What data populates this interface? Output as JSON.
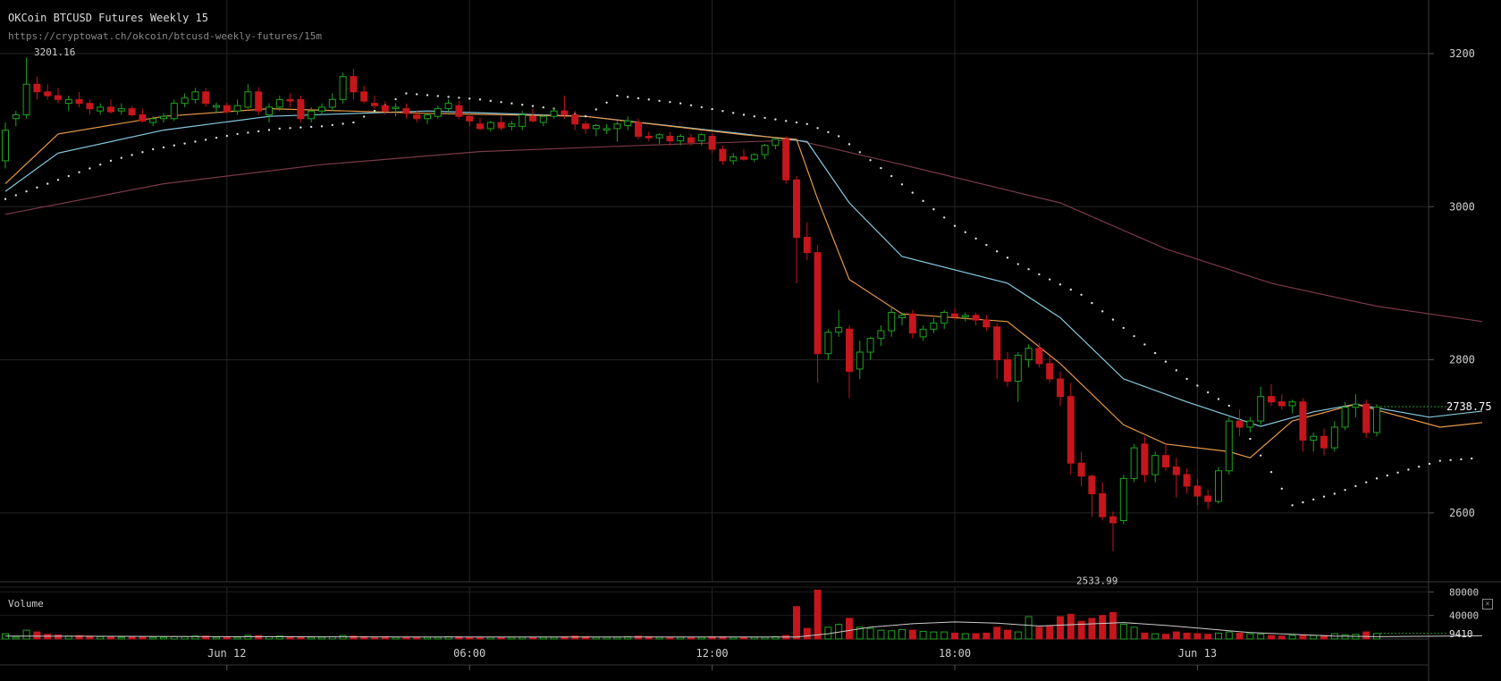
{
  "header": {
    "title": "OKCoin BTCUSD Futures Weekly 15",
    "url": "https://cryptowat.ch/okcoin/btcusd-weekly-futures/15m"
  },
  "volume_panel": {
    "label": "Volume",
    "close_symbol": "✕"
  },
  "colors": {
    "background": "#000000",
    "up": "#1fa31f",
    "down": "#c4161c",
    "ema_fast": "#e8994a",
    "ema_mid": "#86c9e0",
    "sma_long": "#7a3a48",
    "grid": "#262626",
    "text": "#bbbbbb",
    "current_price_line": "#1fa31f"
  },
  "chart_data": {
    "type": "candlestick",
    "title": "OKCoin BTCUSD Futures Weekly 15",
    "interval": "15m",
    "x_tick_labels": [
      "Jun 12",
      "06:00",
      "12:00",
      "18:00",
      "Jun 13"
    ],
    "y_ticks": [
      3200,
      3000,
      2800,
      2600
    ],
    "ylim": [
      2510,
      3270
    ],
    "annotations": {
      "high": "3201.16",
      "low": "2533.99"
    },
    "current_price": "2738.75",
    "volume": {
      "y_ticks": [
        "80000",
        "40000"
      ],
      "current_label": "9410",
      "ylim": [
        0,
        85000
      ]
    },
    "candles": [
      [
        3060,
        3110,
        3050,
        3100,
        9000
      ],
      [
        3115,
        3125,
        3105,
        3120,
        3000
      ],
      [
        3120,
        3195,
        3115,
        3160,
        15000
      ],
      [
        3160,
        3170,
        3140,
        3150,
        12000
      ],
      [
        3150,
        3160,
        3140,
        3145,
        8000
      ],
      [
        3145,
        3155,
        3135,
        3140,
        7000
      ],
      [
        3135,
        3145,
        3125,
        3140,
        5000
      ],
      [
        3140,
        3150,
        3130,
        3135,
        6000
      ],
      [
        3135,
        3140,
        3120,
        3128,
        5000
      ],
      [
        3125,
        3135,
        3120,
        3130,
        4000
      ],
      [
        3130,
        3140,
        3122,
        3124,
        4000
      ],
      [
        3125,
        3135,
        3120,
        3128,
        3000
      ],
      [
        3128,
        3132,
        3118,
        3120,
        3000
      ],
      [
        3120,
        3128,
        3110,
        3112,
        3000
      ],
      [
        3110,
        3118,
        3105,
        3115,
        3000
      ],
      [
        3115,
        3122,
        3110,
        3118,
        3000
      ],
      [
        3115,
        3140,
        3112,
        3135,
        4000
      ],
      [
        3135,
        3148,
        3130,
        3142,
        4000
      ],
      [
        3140,
        3155,
        3135,
        3150,
        5000
      ],
      [
        3150,
        3155,
        3130,
        3135,
        5000
      ],
      [
        3130,
        3136,
        3122,
        3132,
        3000
      ],
      [
        3132,
        3136,
        3122,
        3124,
        3000
      ],
      [
        3125,
        3140,
        3120,
        3132,
        3000
      ],
      [
        3130,
        3160,
        3128,
        3150,
        6000
      ],
      [
        3150,
        3156,
        3120,
        3125,
        6000
      ],
      [
        3120,
        3135,
        3110,
        3130,
        4000
      ],
      [
        3130,
        3145,
        3125,
        3140,
        5000
      ],
      [
        3140,
        3148,
        3130,
        3138,
        4000
      ],
      [
        3140,
        3145,
        3110,
        3115,
        4000
      ],
      [
        3115,
        3130,
        3110,
        3125,
        3000
      ],
      [
        3125,
        3135,
        3120,
        3130,
        3000
      ],
      [
        3130,
        3148,
        3125,
        3140,
        4000
      ],
      [
        3140,
        3175,
        3135,
        3170,
        6000
      ],
      [
        3170,
        3180,
        3140,
        3150,
        5000
      ],
      [
        3150,
        3158,
        3135,
        3138,
        4000
      ],
      [
        3135,
        3145,
        3128,
        3132,
        3000
      ],
      [
        3132,
        3138,
        3120,
        3125,
        4000
      ],
      [
        3128,
        3135,
        3118,
        3130,
        3000
      ],
      [
        3128,
        3135,
        3115,
        3122,
        3000
      ],
      [
        3120,
        3126,
        3110,
        3115,
        3000
      ],
      [
        3115,
        3122,
        3108,
        3120,
        3000
      ],
      [
        3118,
        3132,
        3115,
        3128,
        3000
      ],
      [
        3128,
        3140,
        3125,
        3135,
        4000
      ],
      [
        3132,
        3138,
        3115,
        3118,
        4000
      ],
      [
        3118,
        3122,
        3105,
        3112,
        3000
      ],
      [
        3108,
        3116,
        3100,
        3102,
        3000
      ],
      [
        3102,
        3112,
        3098,
        3110,
        3000
      ],
      [
        3110,
        3120,
        3100,
        3103,
        3000
      ],
      [
        3105,
        3112,
        3100,
        3108,
        3000
      ],
      [
        3105,
        3125,
        3100,
        3120,
        3000
      ],
      [
        3118,
        3128,
        3110,
        3112,
        3000
      ],
      [
        3110,
        3120,
        3105,
        3118,
        3000
      ],
      [
        3118,
        3130,
        3115,
        3125,
        3000
      ],
      [
        3125,
        3145,
        3115,
        3120,
        4000
      ],
      [
        3120,
        3125,
        3100,
        3108,
        5000
      ],
      [
        3108,
        3112,
        3095,
        3102,
        4000
      ],
      [
        3102,
        3108,
        3092,
        3106,
        3000
      ],
      [
        3100,
        3108,
        3095,
        3102,
        3000
      ],
      [
        3102,
        3112,
        3085,
        3108,
        3000
      ],
      [
        3106,
        3118,
        3100,
        3112,
        4000
      ],
      [
        3110,
        3115,
        3088,
        3092,
        5000
      ],
      [
        3092,
        3098,
        3085,
        3090,
        4000
      ],
      [
        3090,
        3096,
        3082,
        3094,
        3000
      ],
      [
        3092,
        3098,
        3080,
        3086,
        3000
      ],
      [
        3086,
        3095,
        3080,
        3092,
        3000
      ],
      [
        3090,
        3095,
        3080,
        3084,
        3000
      ],
      [
        3086,
        3096,
        3080,
        3094,
        3000
      ],
      [
        3092,
        3096,
        3070,
        3075,
        4000
      ],
      [
        3075,
        3080,
        3055,
        3060,
        4000
      ],
      [
        3060,
        3070,
        3055,
        3065,
        3000
      ],
      [
        3065,
        3075,
        3060,
        3062,
        3000
      ],
      [
        3062,
        3070,
        3058,
        3068,
        3000
      ],
      [
        3068,
        3082,
        3062,
        3080,
        3000
      ],
      [
        3080,
        3090,
        3075,
        3088,
        4000
      ],
      [
        3088,
        3092,
        3030,
        3035,
        6000
      ],
      [
        3035,
        3040,
        2900,
        2960,
        55000
      ],
      [
        2960,
        2980,
        2930,
        2940,
        18000
      ],
      [
        2940,
        2950,
        2770,
        2808,
        83000
      ],
      [
        2808,
        2840,
        2800,
        2836,
        20000
      ],
      [
        2836,
        2865,
        2830,
        2842,
        25000
      ],
      [
        2840,
        2845,
        2750,
        2785,
        35000
      ],
      [
        2788,
        2825,
        2775,
        2810,
        20000
      ],
      [
        2810,
        2830,
        2800,
        2828,
        18000
      ],
      [
        2828,
        2845,
        2818,
        2838,
        15000
      ],
      [
        2838,
        2870,
        2830,
        2862,
        14000
      ],
      [
        2855,
        2862,
        2845,
        2858,
        16000
      ],
      [
        2860,
        2865,
        2828,
        2835,
        15000
      ],
      [
        2830,
        2845,
        2825,
        2840,
        13000
      ],
      [
        2840,
        2855,
        2835,
        2848,
        12000
      ],
      [
        2848,
        2865,
        2840,
        2862,
        12000
      ],
      [
        2860,
        2868,
        2852,
        2856,
        10000
      ],
      [
        2856,
        2862,
        2850,
        2858,
        9000
      ],
      [
        2858,
        2862,
        2845,
        2852,
        9000
      ],
      [
        2852,
        2858,
        2838,
        2843,
        10000
      ],
      [
        2843,
        2848,
        2775,
        2800,
        20000
      ],
      [
        2800,
        2810,
        2765,
        2772,
        15000
      ],
      [
        2772,
        2810,
        2745,
        2806,
        12000
      ],
      [
        2800,
        2820,
        2790,
        2815,
        38000
      ],
      [
        2815,
        2822,
        2790,
        2795,
        20000
      ],
      [
        2795,
        2805,
        2770,
        2775,
        22000
      ],
      [
        2775,
        2785,
        2740,
        2752,
        38000
      ],
      [
        2752,
        2770,
        2650,
        2665,
        42000
      ],
      [
        2665,
        2680,
        2635,
        2648,
        30000
      ],
      [
        2648,
        2650,
        2595,
        2625,
        35000
      ],
      [
        2625,
        2640,
        2590,
        2595,
        40000
      ],
      [
        2595,
        2602,
        2550,
        2587,
        45000
      ],
      [
        2590,
        2650,
        2585,
        2645,
        25000
      ],
      [
        2645,
        2690,
        2640,
        2685,
        20000
      ],
      [
        2690,
        2700,
        2640,
        2650,
        10000
      ],
      [
        2650,
        2680,
        2640,
        2675,
        9000
      ],
      [
        2675,
        2690,
        2655,
        2660,
        8000
      ],
      [
        2660,
        2672,
        2620,
        2650,
        12000
      ],
      [
        2650,
        2658,
        2625,
        2635,
        10000
      ],
      [
        2635,
        2645,
        2610,
        2622,
        9000
      ],
      [
        2622,
        2630,
        2605,
        2615,
        8000
      ],
      [
        2615,
        2660,
        2612,
        2655,
        10000
      ],
      [
        2655,
        2725,
        2650,
        2720,
        12000
      ],
      [
        2720,
        2735,
        2700,
        2712,
        10000
      ],
      [
        2712,
        2725,
        2705,
        2720,
        9000
      ],
      [
        2720,
        2765,
        2715,
        2752,
        8000
      ],
      [
        2752,
        2768,
        2740,
        2745,
        6000
      ],
      [
        2745,
        2755,
        2735,
        2740,
        5000
      ],
      [
        2740,
        2748,
        2730,
        2745,
        6000
      ],
      [
        2745,
        2750,
        2680,
        2695,
        7000
      ],
      [
        2695,
        2705,
        2680,
        2700,
        6000
      ],
      [
        2700,
        2710,
        2675,
        2685,
        6000
      ],
      [
        2685,
        2720,
        2680,
        2712,
        9000
      ],
      [
        2712,
        2745,
        2708,
        2738,
        7000
      ],
      [
        2738,
        2755,
        2725,
        2742,
        8000
      ],
      [
        2742,
        2748,
        2698,
        2705,
        12000
      ],
      [
        2705,
        2742,
        2700,
        2738,
        9410
      ]
    ],
    "ema_fast": [
      [
        0,
        3030
      ],
      [
        5,
        3095
      ],
      [
        15,
        3118
      ],
      [
        25,
        3128
      ],
      [
        40,
        3122
      ],
      [
        55,
        3118
      ],
      [
        70,
        3094
      ],
      [
        75,
        3088
      ],
      [
        77,
        3010
      ],
      [
        80,
        2905
      ],
      [
        85,
        2860
      ],
      [
        95,
        2850
      ],
      [
        100,
        2795
      ],
      [
        106,
        2715
      ],
      [
        110,
        2690
      ],
      [
        116,
        2680
      ],
      [
        118,
        2672
      ],
      [
        122,
        2720
      ],
      [
        128,
        2742
      ],
      [
        136,
        2712
      ],
      [
        140,
        2718
      ]
    ],
    "ema_mid": [
      [
        0,
        3020
      ],
      [
        5,
        3070
      ],
      [
        15,
        3100
      ],
      [
        25,
        3118
      ],
      [
        40,
        3125
      ],
      [
        55,
        3118
      ],
      [
        70,
        3095
      ],
      [
        76,
        3085
      ],
      [
        80,
        3005
      ],
      [
        85,
        2935
      ],
      [
        95,
        2900
      ],
      [
        100,
        2855
      ],
      [
        106,
        2775
      ],
      [
        112,
        2745
      ],
      [
        119,
        2713
      ],
      [
        124,
        2732
      ],
      [
        128,
        2742
      ],
      [
        135,
        2725
      ],
      [
        140,
        2733
      ]
    ],
    "sma_long": [
      [
        0,
        2990
      ],
      [
        15,
        3030
      ],
      [
        30,
        3055
      ],
      [
        45,
        3072
      ],
      [
        60,
        3080
      ],
      [
        75,
        3087
      ],
      [
        85,
        3055
      ],
      [
        100,
        3005
      ],
      [
        110,
        2945
      ],
      [
        120,
        2900
      ],
      [
        130,
        2870
      ],
      [
        140,
        2850
      ]
    ],
    "sar": [
      [
        0,
        3010
      ],
      [
        3,
        3025
      ],
      [
        6,
        3040
      ],
      [
        10,
        3060
      ],
      [
        14,
        3075
      ],
      [
        18,
        3085
      ],
      [
        22,
        3095
      ],
      [
        26,
        3102
      ],
      [
        30,
        3105
      ],
      [
        33,
        3110
      ],
      [
        38,
        3148
      ],
      [
        45,
        3140
      ],
      [
        52,
        3128
      ],
      [
        55,
        3118
      ],
      [
        58,
        3145
      ],
      [
        64,
        3135
      ],
      [
        70,
        3120
      ],
      [
        76,
        3108
      ],
      [
        79,
        3092
      ],
      [
        84,
        3040
      ],
      [
        90,
        2975
      ],
      [
        96,
        2925
      ],
      [
        102,
        2885
      ],
      [
        108,
        2820
      ],
      [
        112,
        2775
      ],
      [
        116,
        2740
      ],
      [
        122,
        2610
      ],
      [
        126,
        2625
      ],
      [
        130,
        2645
      ],
      [
        136,
        2668
      ],
      [
        140,
        2672
      ]
    ],
    "volume_ma": [
      [
        0,
        5000
      ],
      [
        10,
        4500
      ],
      [
        20,
        4000
      ],
      [
        40,
        3500
      ],
      [
        60,
        3500
      ],
      [
        75,
        3500
      ],
      [
        78,
        9000
      ],
      [
        82,
        20000
      ],
      [
        86,
        26000
      ],
      [
        90,
        29000
      ],
      [
        94,
        27000
      ],
      [
        98,
        22000
      ],
      [
        102,
        25000
      ],
      [
        106,
        28000
      ],
      [
        110,
        23000
      ],
      [
        114,
        17000
      ],
      [
        118,
        11000
      ],
      [
        122,
        8000
      ],
      [
        126,
        5000
      ],
      [
        130,
        4000
      ],
      [
        140,
        5500
      ]
    ]
  }
}
